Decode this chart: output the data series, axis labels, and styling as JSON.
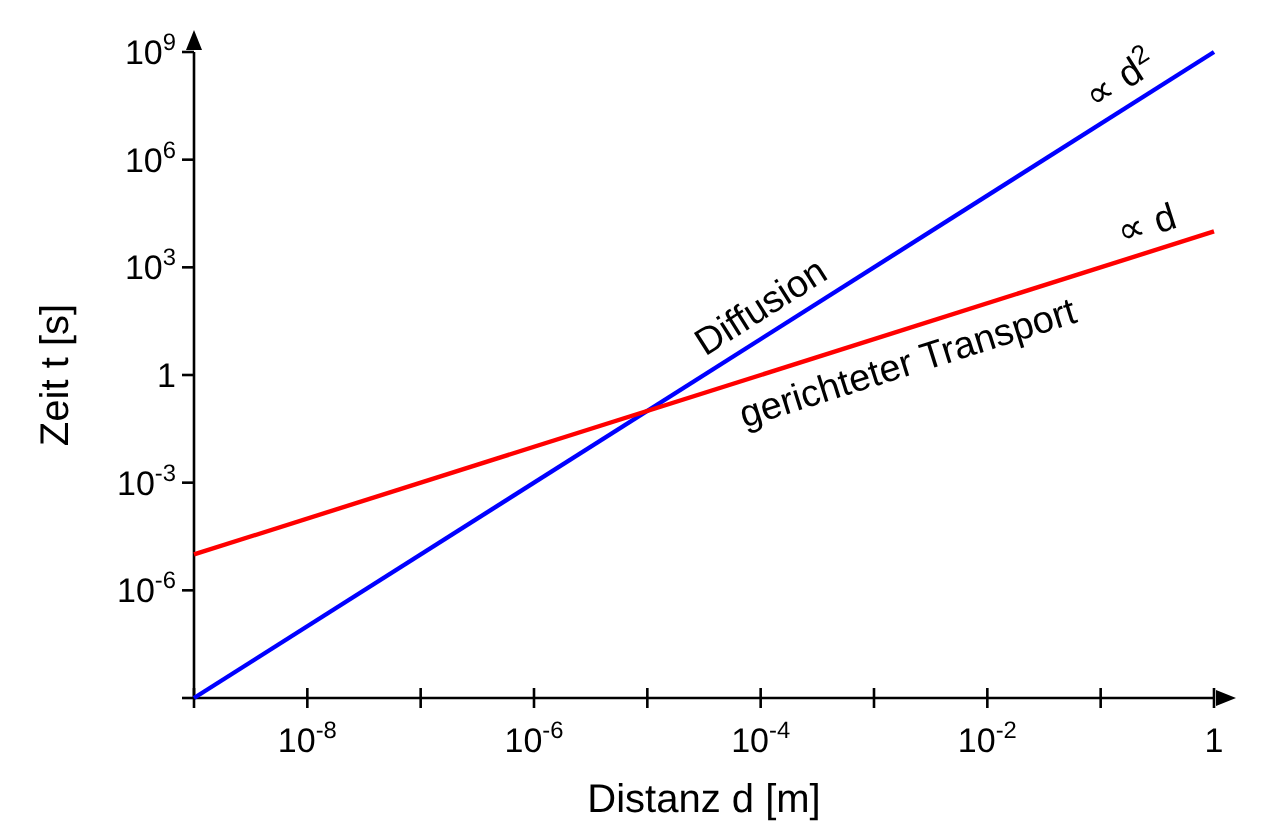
{
  "chart_data": {
    "type": "line",
    "log": "xy",
    "grid": false,
    "marker": "none",
    "line_style": "solid",
    "xlabel": "Distanz d [m]",
    "ylabel": "Zeit t [s]",
    "xlim": [
      1e-09,
      1
    ],
    "ylim": [
      1e-09,
      1000000000.0
    ],
    "xticks": [
      {
        "value": 1e-09,
        "label": null
      },
      {
        "value": 1e-08,
        "label": "10$^{-8}$"
      },
      {
        "value": 1e-07,
        "label": null
      },
      {
        "value": 1e-06,
        "label": "10$^{-6}$"
      },
      {
        "value": 1e-05,
        "label": null
      },
      {
        "value": 0.0001,
        "label": "10$^{-4}$"
      },
      {
        "value": 0.001,
        "label": null
      },
      {
        "value": 0.01,
        "label": "10$^{-2}$"
      },
      {
        "value": 0.1,
        "label": null
      },
      1
    ],
    "yticks": [
      {
        "value": 1e-09,
        "label": null
      },
      {
        "value": 1e-06,
        "label": "10$^{-6}$"
      },
      {
        "value": 0.001,
        "label": "10$^{-3}$"
      },
      1,
      {
        "value": 1000.0,
        "label": "10$^{3}$"
      },
      {
        "value": 1000000.0,
        "label": "10$^{6}$"
      },
      {
        "value": 1000000000.0,
        "label": "10$^{9}$"
      }
    ],
    "x": [
      1e-09,
      1
    ],
    "series": [
      {
        "name": "Diffusion",
        "color": "#0000ff",
        "values": [
          1e-09,
          1000000000.0
        ]
      },
      {
        "name": "gerichteter Transport",
        "color": "#ff0000",
        "values": [
          1e-05,
          10000.0
        ]
      }
    ],
    "annotations": [
      {
        "text": "∝ d$^{2}$",
        "x": 0.2,
        "y": 40000000.0
      },
      {
        "text": "∝ d",
        "x": 0.3,
        "y": 3000
      }
    ]
  }
}
